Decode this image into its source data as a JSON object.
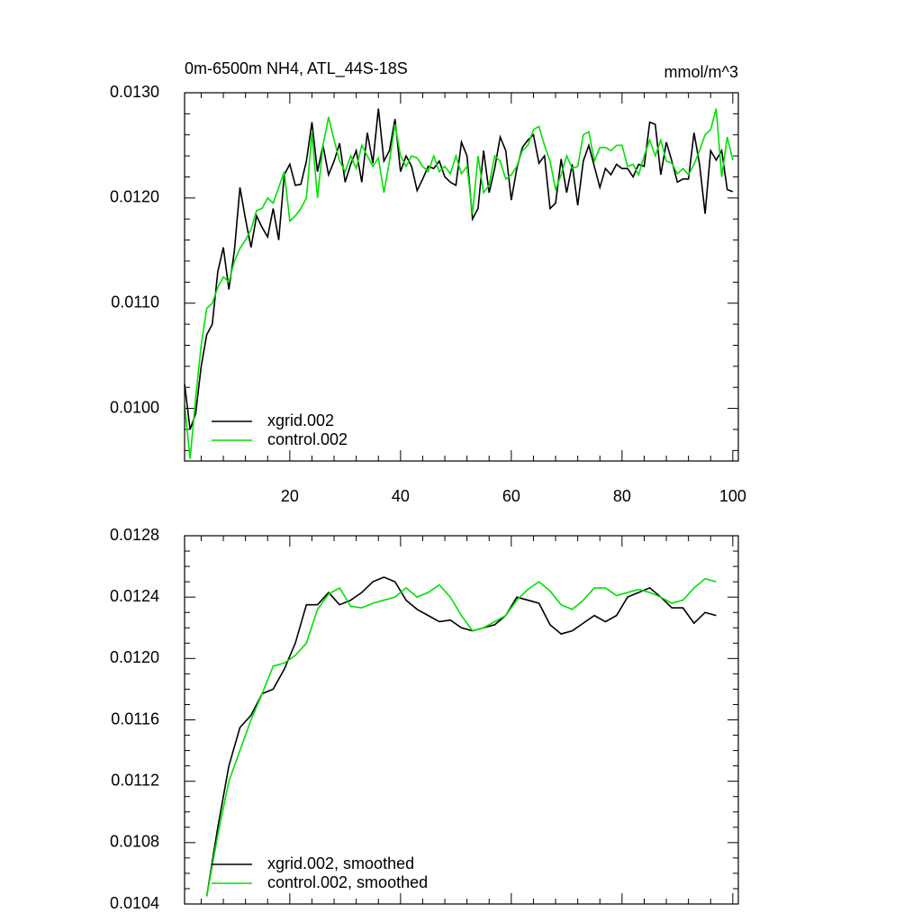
{
  "chart_data": [
    {
      "type": "line",
      "title": "0m-6500m NH4, ATL_44S-18S",
      "units": "mmol/m^3",
      "x": [
        1,
        2,
        3,
        4,
        5,
        6,
        7,
        8,
        9,
        10,
        11,
        12,
        13,
        14,
        15,
        16,
        17,
        18,
        19,
        20,
        21,
        22,
        23,
        24,
        25,
        26,
        27,
        28,
        29,
        30,
        31,
        32,
        33,
        34,
        35,
        36,
        37,
        38,
        39,
        40,
        41,
        42,
        43,
        44,
        45,
        46,
        47,
        48,
        49,
        50,
        51,
        52,
        53,
        54,
        55,
        56,
        57,
        58,
        59,
        60,
        61,
        62,
        63,
        64,
        65,
        66,
        67,
        68,
        69,
        70,
        71,
        72,
        73,
        74,
        75,
        76,
        77,
        78,
        79,
        80,
        81,
        82,
        83,
        84,
        85,
        86,
        87,
        88,
        89,
        90,
        91,
        92,
        93,
        94,
        95,
        96,
        97,
        98,
        99,
        100
      ],
      "series": [
        {
          "name": "xgrid.002",
          "color": "#000000",
          "values": [
            0.01023,
            0.0098,
            0.00995,
            0.0104,
            0.0107,
            0.0108,
            0.0113,
            0.01153,
            0.01113,
            0.0115,
            0.0121,
            0.0118,
            0.01153,
            0.01183,
            0.01172,
            0.01163,
            0.0119,
            0.0116,
            0.01222,
            0.01232,
            0.01212,
            0.01213,
            0.01235,
            0.01272,
            0.01225,
            0.0125,
            0.01222,
            0.01235,
            0.01252,
            0.01215,
            0.01232,
            0.01245,
            0.01215,
            0.01262,
            0.01233,
            0.01285,
            0.01235,
            0.01245,
            0.01275,
            0.01225,
            0.0124,
            0.0123,
            0.01207,
            0.01218,
            0.0123,
            0.01228,
            0.01235,
            0.0122,
            0.01215,
            0.01212,
            0.01253,
            0.0124,
            0.0118,
            0.0119,
            0.01245,
            0.01205,
            0.01228,
            0.01258,
            0.01245,
            0.01198,
            0.01228,
            0.01248,
            0.01255,
            0.0126,
            0.01233,
            0.0124,
            0.0119,
            0.01195,
            0.01237,
            0.01205,
            0.01232,
            0.01193,
            0.01235,
            0.0125,
            0.0123,
            0.0121,
            0.01228,
            0.01222,
            0.01232,
            0.01228,
            0.01228,
            0.0122,
            0.01232,
            0.0123,
            0.01272,
            0.0127,
            0.01222,
            0.01253,
            0.01235,
            0.01215,
            0.01218,
            0.01218,
            0.01262,
            0.01232,
            0.01185,
            0.01245,
            0.01236,
            0.01245,
            0.01208,
            0.01206
          ]
        },
        {
          "name": "control.002",
          "color": "#00e000",
          "values": [
            0.01003,
            0.00952,
            0.0101,
            0.0106,
            0.01095,
            0.011,
            0.01115,
            0.01125,
            0.0112,
            0.0114,
            0.01152,
            0.0116,
            0.0117,
            0.01188,
            0.0119,
            0.012,
            0.01195,
            0.0121,
            0.01225,
            0.01178,
            0.01183,
            0.0119,
            0.012,
            0.01262,
            0.012,
            0.0125,
            0.01277,
            0.01255,
            0.01235,
            0.01225,
            0.0124,
            0.01228,
            0.0125,
            0.0124,
            0.0123,
            0.01238,
            0.01205,
            0.01235,
            0.0127,
            0.0124,
            0.0123,
            0.0124,
            0.01238,
            0.0123,
            0.01225,
            0.0124,
            0.01225,
            0.0123,
            0.01223,
            0.0124,
            0.01223,
            0.0123,
            0.01185,
            0.0124,
            0.01205,
            0.01212,
            0.0124,
            0.01235,
            0.01218,
            0.01222,
            0.0123,
            0.01245,
            0.0125,
            0.01265,
            0.01268,
            0.0125,
            0.01235,
            0.01208,
            0.01222,
            0.0124,
            0.01228,
            0.0123,
            0.0126,
            0.01263,
            0.01235,
            0.01248,
            0.01248,
            0.01245,
            0.0125,
            0.0125,
            0.0123,
            0.01232,
            0.01222,
            0.0124,
            0.01255,
            0.0124,
            0.01255,
            0.01235,
            0.01233,
            0.01223,
            0.01228,
            0.01222,
            0.01232,
            0.01245,
            0.0126,
            0.01265,
            0.01285,
            0.0122,
            0.01258,
            0.01236
          ]
        }
      ],
      "xlim": [
        1,
        101
      ],
      "ylim": [
        0.0095,
        0.013
      ],
      "xticks": [
        20,
        40,
        60,
        80,
        100
      ],
      "xtick_labels": true,
      "yticks": [
        {
          "value": 0.01,
          "label": "0.0100"
        },
        {
          "value": 0.011,
          "label": "0.0110"
        },
        {
          "value": 0.012,
          "label": "0.0120"
        },
        {
          "value": 0.013,
          "label": "0.0130"
        }
      ],
      "legend": "lower left"
    },
    {
      "type": "line",
      "x": [
        5,
        7,
        9,
        11,
        13,
        15,
        17,
        19,
        21,
        23,
        25,
        27,
        29,
        31,
        33,
        35,
        37,
        39,
        41,
        43,
        45,
        47,
        49,
        51,
        53,
        55,
        57,
        59,
        61,
        63,
        65,
        67,
        69,
        71,
        73,
        75,
        77,
        79,
        81,
        83,
        85,
        87,
        89,
        91,
        93,
        95,
        97
      ],
      "series": [
        {
          "name": "xgrid.002, smoothed",
          "color": "#000000",
          "values": [
            0.01045,
            0.0109,
            0.0113,
            0.01155,
            0.01163,
            0.01177,
            0.0118,
            0.01193,
            0.0121,
            0.01235,
            0.01235,
            0.01243,
            0.01235,
            0.01238,
            0.01243,
            0.0125,
            0.01253,
            0.0125,
            0.01238,
            0.01232,
            0.01228,
            0.01224,
            0.01225,
            0.0122,
            0.01218,
            0.0122,
            0.01222,
            0.01228,
            0.0124,
            0.01238,
            0.01236,
            0.01222,
            0.01216,
            0.01218,
            0.01223,
            0.01228,
            0.01224,
            0.01228,
            0.0124,
            0.01243,
            0.01246,
            0.0124,
            0.01233,
            0.01233,
            0.01223,
            0.0123,
            0.01228
          ]
        },
        {
          "name": "control.002, smoothed",
          "color": "#00e000",
          "values": [
            0.01045,
            0.01085,
            0.0112,
            0.0114,
            0.0116,
            0.01177,
            0.01195,
            0.01197,
            0.01202,
            0.0121,
            0.01232,
            0.01242,
            0.01246,
            0.01234,
            0.01233,
            0.01236,
            0.01238,
            0.0124,
            0.01246,
            0.0124,
            0.01243,
            0.01248,
            0.0124,
            0.01228,
            0.01218,
            0.0122,
            0.01224,
            0.01228,
            0.01238,
            0.01245,
            0.0125,
            0.01244,
            0.01235,
            0.01232,
            0.01238,
            0.01246,
            0.01246,
            0.01241,
            0.01243,
            0.01245,
            0.01243,
            0.0124,
            0.01236,
            0.01238,
            0.01246,
            0.01252,
            0.0125
          ]
        }
      ],
      "xlim": [
        1,
        101
      ],
      "ylim": [
        0.0104,
        0.0128
      ],
      "xticks": [
        20,
        40,
        60,
        80,
        100
      ],
      "xtick_labels": false,
      "yticks": [
        0.0104,
        0.0108,
        0.0112,
        0.0116,
        {
          "value": 0.012,
          "label": "0.0120"
        },
        0.0124,
        0.0128
      ],
      "legend": "lower left"
    }
  ]
}
